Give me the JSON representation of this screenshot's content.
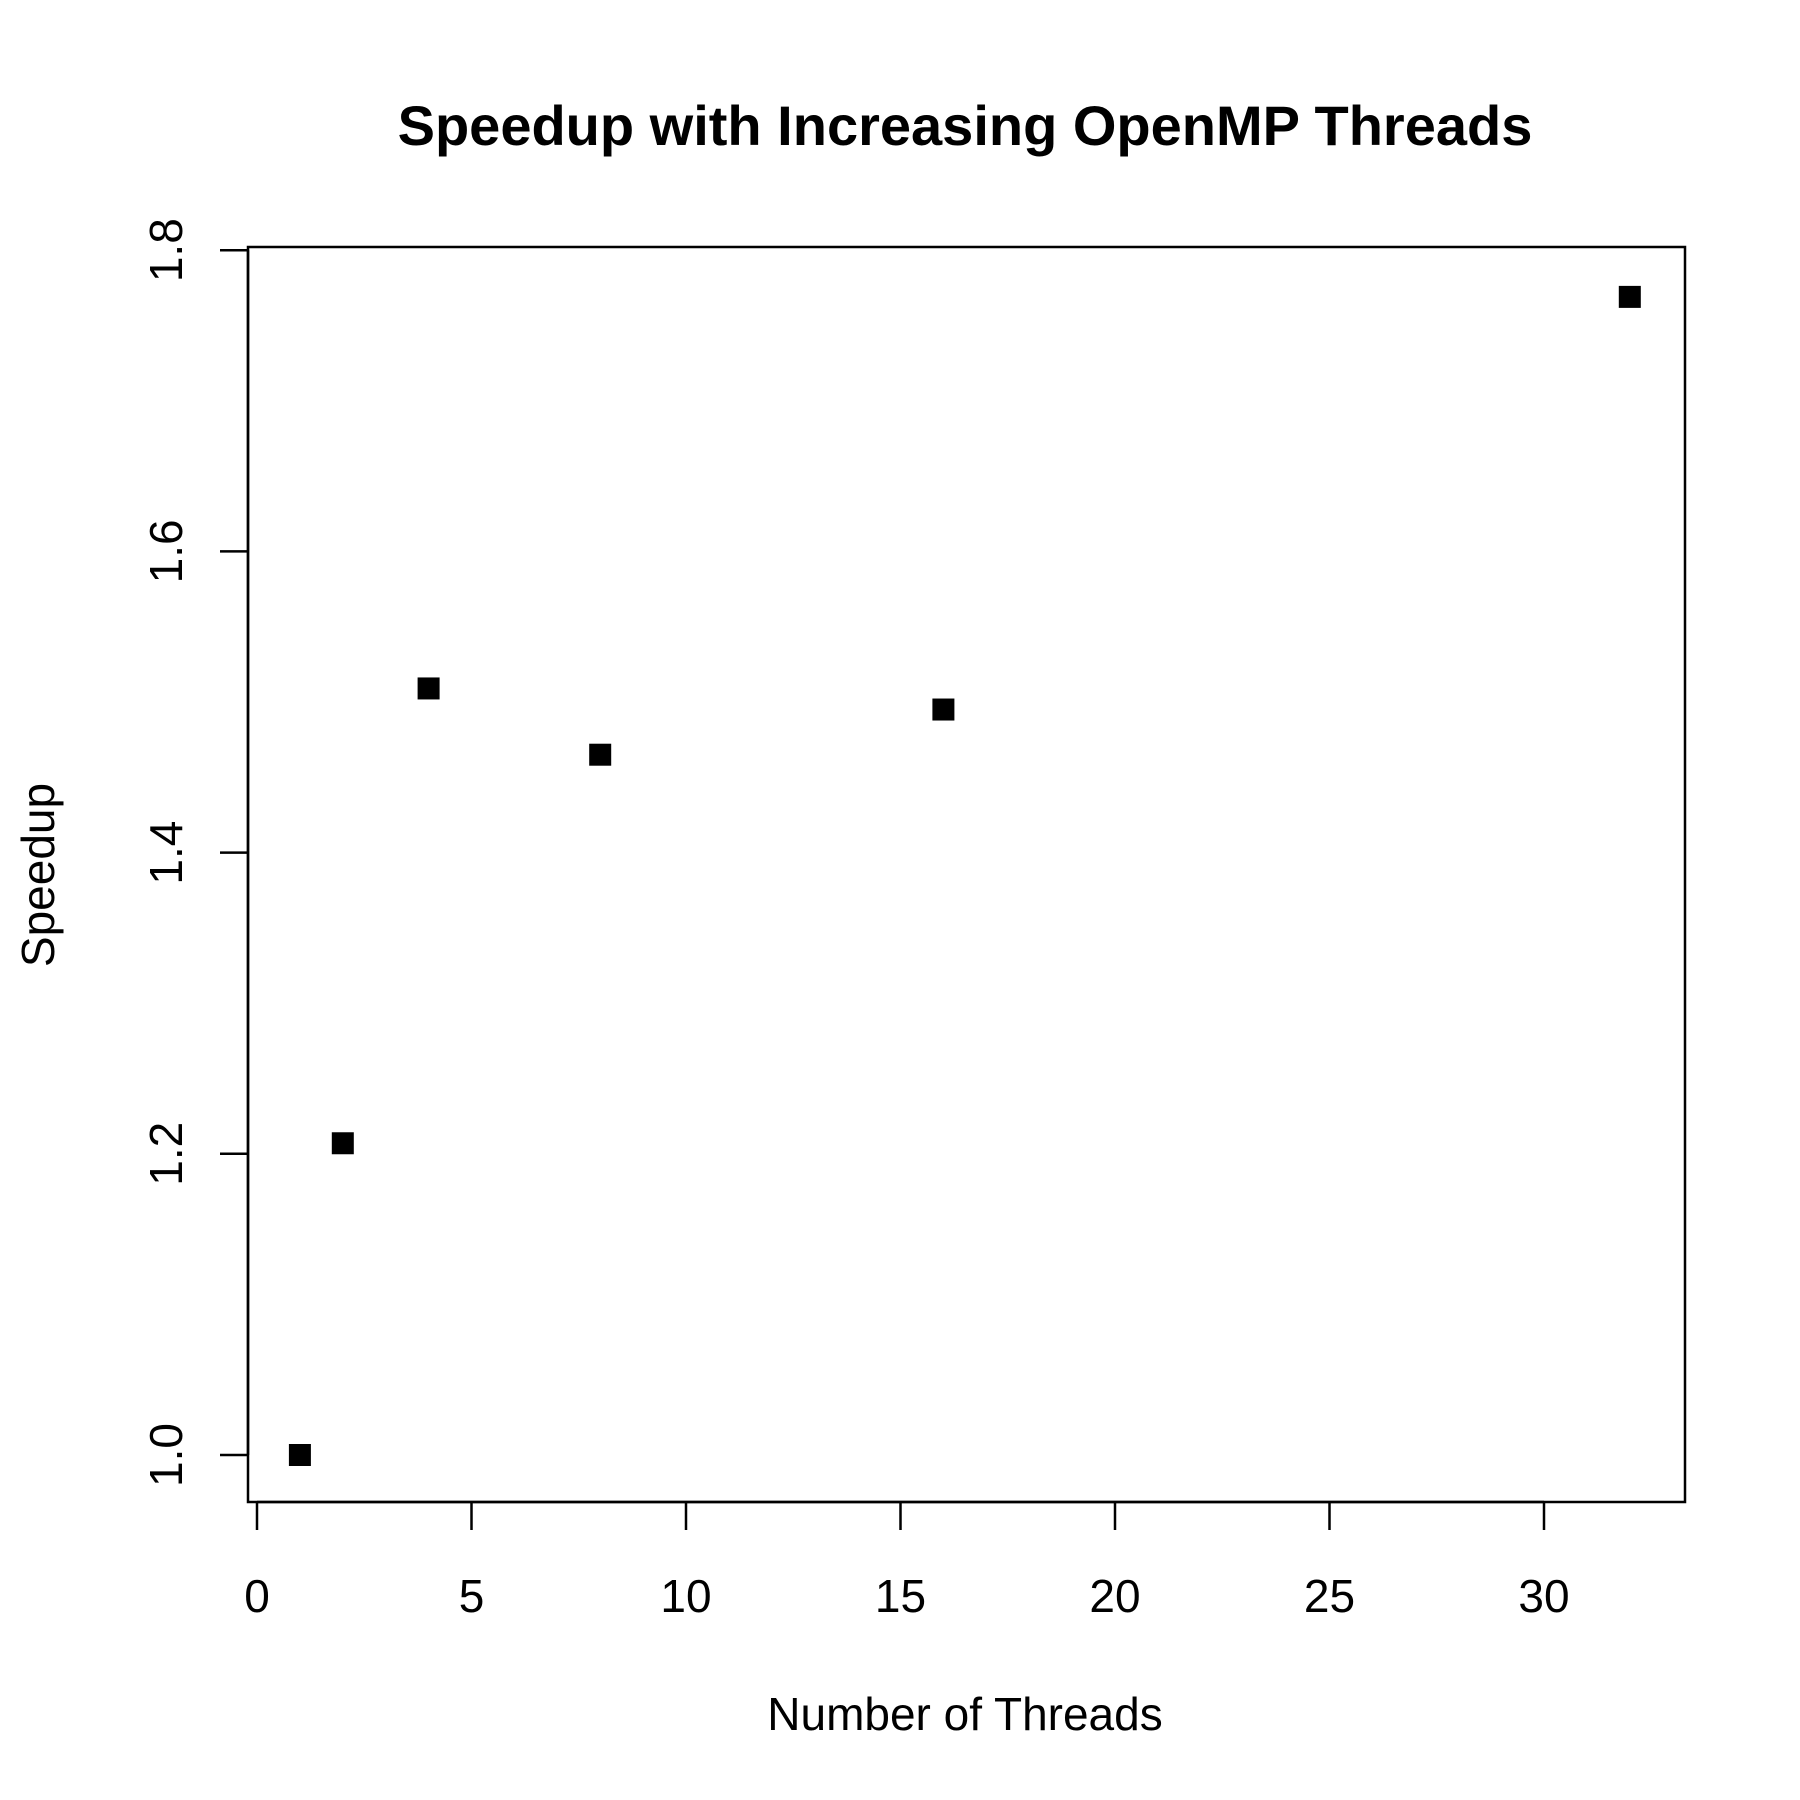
{
  "chart_data": {
    "type": "scatter",
    "title": "Speedup with Increasing OpenMP Threads",
    "xlabel": "Number of Threads",
    "ylabel": "Speedup",
    "xlim": [
      0,
      33.5
    ],
    "ylim": [
      0.969,
      1.8
    ],
    "x_ticks": [
      0,
      5,
      10,
      15,
      20,
      25,
      30
    ],
    "x_tick_labels": [
      "0",
      "5",
      "10",
      "15",
      "20",
      "25",
      "30"
    ],
    "y_ticks": [
      1.0,
      1.2,
      1.4,
      1.6,
      1.8
    ],
    "y_tick_labels": [
      "1.0",
      "1.2",
      "1.4",
      "1.6",
      "1.8"
    ],
    "grid": false,
    "legend": "none",
    "marker": "filled-square",
    "marker_color": "#000000",
    "series": [
      {
        "x": [
          1,
          2,
          4,
          8,
          16,
          32
        ],
        "y": [
          1.0,
          1.207,
          1.509,
          1.465,
          1.495,
          1.769
        ]
      }
    ]
  }
}
